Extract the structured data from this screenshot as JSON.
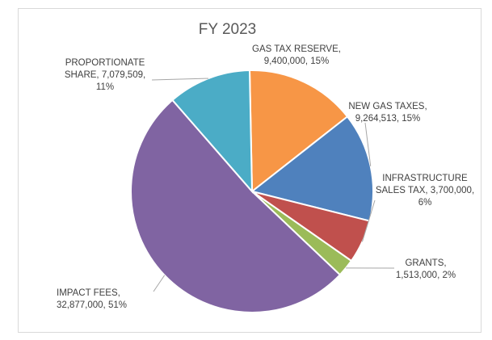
{
  "colors": {
    "impact": "#8064a2",
    "proportionate": "#4bacc6",
    "gas_reserve": "#f79646",
    "new_gas": "#4f81bd",
    "infrastructure": "#c0504d",
    "grants": "#9bbb59"
  },
  "chart_data": {
    "type": "pie",
    "title": "FY 2023",
    "slices": [
      {
        "name": "GAS TAX RESERVE",
        "value": 9400000,
        "percent": "15%",
        "label": "GAS TAX RESERVE,\n9,400,000, 15%"
      },
      {
        "name": "NEW GAS TAXES",
        "value": 9264513,
        "percent": "15%",
        "label": "NEW GAS TAXES,\n9,264,513, 15%"
      },
      {
        "name": "INFRASTRUCTURE SALES TAX",
        "value": 3700000,
        "percent": "6%",
        "label": "INFRASTRUCTURE\nSALES TAX, 3,700,000,\n6%"
      },
      {
        "name": "GRANTS",
        "value": 1513000,
        "percent": "2%",
        "label": "GRANTS,\n1,513,000, 2%"
      },
      {
        "name": "IMPACT FEES",
        "value": 32877000,
        "percent": "51%",
        "label": "IMPACT FEES,\n32,877,000, 51%"
      },
      {
        "name": "PROPORTIONATE SHARE",
        "value": 7079509,
        "percent": "11%",
        "label": "PROPORTIONATE\nSHARE, 7,079,509,\n11%"
      }
    ]
  }
}
